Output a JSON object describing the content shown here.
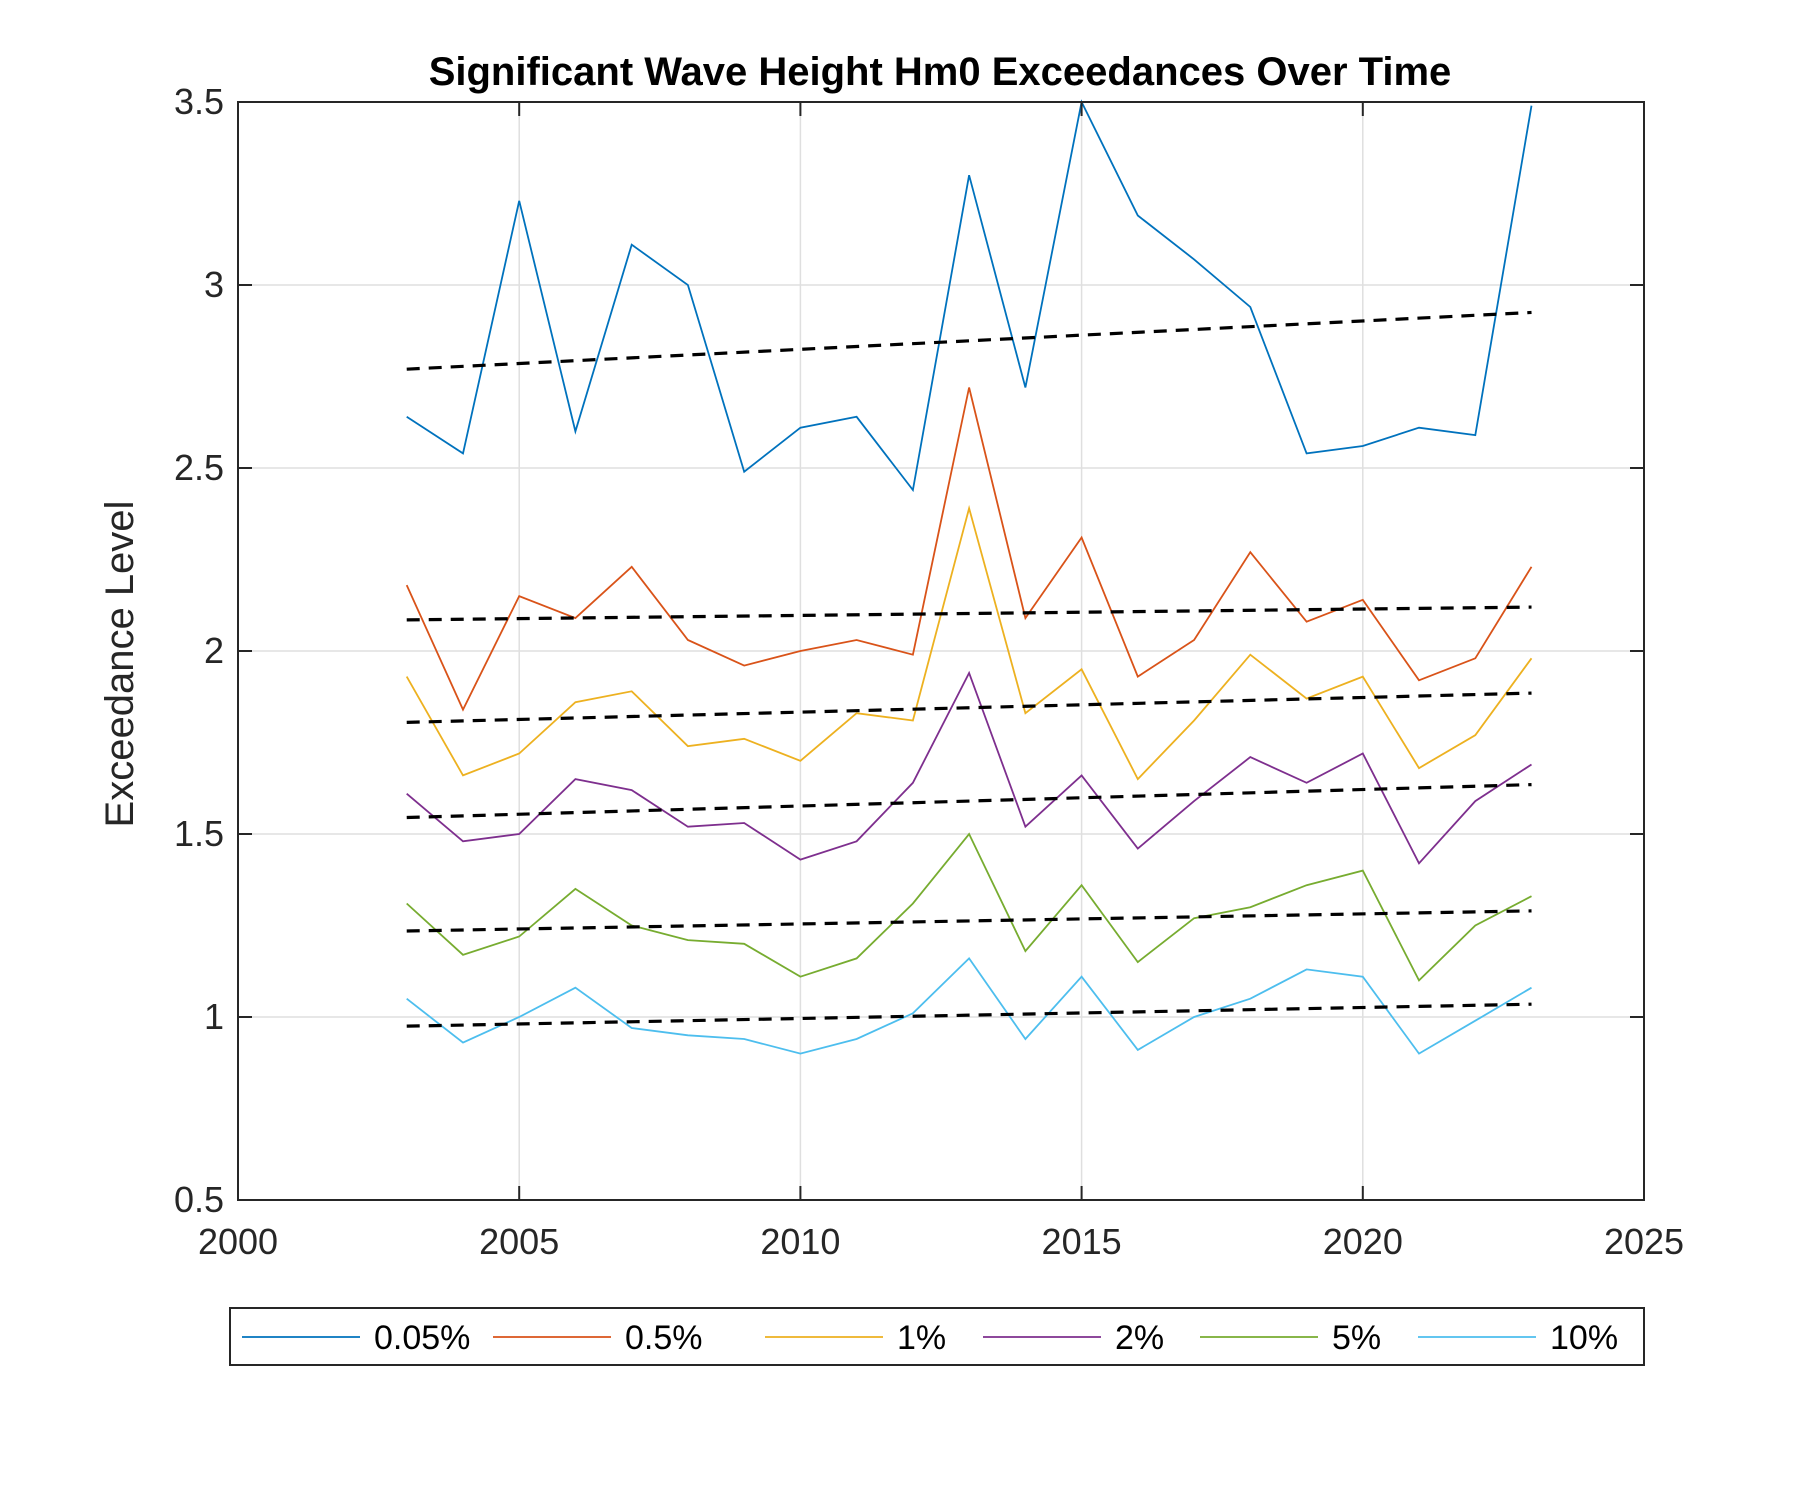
{
  "chart_data": {
    "type": "line",
    "title": "Significant Wave Height Hm0 Exceedances Over Time",
    "xlabel": "",
    "ylabel": "Exceedance Level",
    "xlim": [
      2000,
      2025
    ],
    "ylim": [
      0.5,
      3.5
    ],
    "xticks": [
      2000,
      2005,
      2010,
      2015,
      2020,
      2025
    ],
    "yticks": [
      0.5,
      1,
      1.5,
      2,
      2.5,
      3,
      3.5
    ],
    "xtick_labels": [
      "2000",
      "2005",
      "2010",
      "2015",
      "2020",
      "2025"
    ],
    "ytick_labels": [
      "0.5",
      "1",
      "1.5",
      "2",
      "2.5",
      "3",
      "3.5"
    ],
    "grid": true,
    "legend_position": "bottom-outside",
    "x": [
      2003,
      2004,
      2005,
      2006,
      2007,
      2008,
      2009,
      2010,
      2011,
      2012,
      2013,
      2014,
      2015,
      2016,
      2017,
      2018,
      2019,
      2020,
      2021,
      2022,
      2023
    ],
    "series": [
      {
        "name": "0.05%",
        "color": "#0072BD",
        "values": [
          2.64,
          2.54,
          3.23,
          2.6,
          3.11,
          3.0,
          2.49,
          2.61,
          2.64,
          2.44,
          3.3,
          2.72,
          3.5,
          3.19,
          3.07,
          2.94,
          2.54,
          2.56,
          2.61,
          2.59,
          3.49
        ],
        "trend": [
          2.77,
          2.925
        ]
      },
      {
        "name": "0.5%",
        "color": "#D95319",
        "values": [
          2.18,
          1.84,
          2.15,
          2.09,
          2.23,
          2.03,
          1.96,
          2.0,
          2.03,
          1.99,
          2.72,
          2.09,
          2.31,
          1.93,
          2.03,
          2.27,
          2.08,
          2.14,
          1.92,
          1.98,
          2.23
        ],
        "trend": [
          2.085,
          2.12
        ]
      },
      {
        "name": "1%",
        "color": "#EDB120",
        "values": [
          1.93,
          1.66,
          1.72,
          1.86,
          1.89,
          1.74,
          1.76,
          1.7,
          1.83,
          1.81,
          2.39,
          1.83,
          1.95,
          1.65,
          1.81,
          1.99,
          1.87,
          1.93,
          1.68,
          1.77,
          1.98
        ],
        "trend": [
          1.805,
          1.885
        ]
      },
      {
        "name": "2%",
        "color": "#7E2F8E",
        "values": [
          1.61,
          1.48,
          1.5,
          1.65,
          1.62,
          1.52,
          1.53,
          1.43,
          1.48,
          1.64,
          1.94,
          1.52,
          1.66,
          1.46,
          1.59,
          1.71,
          1.64,
          1.72,
          1.42,
          1.59,
          1.69
        ],
        "trend": [
          1.545,
          1.635
        ]
      },
      {
        "name": "5%",
        "color": "#77AC30",
        "values": [
          1.31,
          1.17,
          1.22,
          1.35,
          1.25,
          1.21,
          1.2,
          1.11,
          1.16,
          1.31,
          1.5,
          1.18,
          1.36,
          1.15,
          1.27,
          1.3,
          1.36,
          1.4,
          1.1,
          1.25,
          1.33
        ],
        "trend": [
          1.235,
          1.29
        ]
      },
      {
        "name": "10%",
        "color": "#4DBEEE",
        "values": [
          1.05,
          0.93,
          1.0,
          1.08,
          0.97,
          0.95,
          0.94,
          0.9,
          0.94,
          1.01,
          1.16,
          0.94,
          1.11,
          0.91,
          1.0,
          1.05,
          1.13,
          1.11,
          0.9,
          0.99,
          1.08
        ],
        "trend": [
          0.975,
          1.035
        ]
      }
    ],
    "trend_style": {
      "color": "#000000",
      "dash": "dashed"
    }
  }
}
